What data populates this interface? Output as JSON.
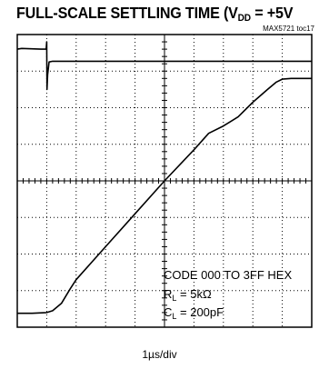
{
  "header": {
    "title_main": "FULL-SCALE SETTLING TIME  (V",
    "title_sub": "DD",
    "title_tail": " = +5V",
    "figure_id": "MAX5721 toc17"
  },
  "chart_data": {
    "type": "line",
    "title": "FULL-SCALE SETTLING TIME (VDD = +5V",
    "xlabel": "1µs/div",
    "x_divisions": 10,
    "y_divisions": 8,
    "x_unit": "div",
    "grid": true,
    "series": [
      {
        "trace": "upper",
        "x": [
          0,
          0.15,
          0.8,
          0.98,
          1.0,
          1.01,
          1.03,
          1.08,
          1.2,
          2.0,
          4.0,
          6.0,
          8.0,
          10.0
        ],
        "y": [
          7.6,
          7.62,
          7.6,
          7.6,
          7.8,
          6.5,
          6.9,
          7.25,
          7.27,
          7.27,
          7.27,
          7.27,
          7.27,
          7.27
        ]
      },
      {
        "trace": "lower",
        "x": [
          0,
          0.5,
          1.0,
          1.2,
          1.5,
          1.8,
          2.0,
          3.0,
          4.0,
          5.0,
          6.0,
          6.5,
          7.0,
          7.5,
          8.0,
          8.5,
          8.8,
          9.0,
          9.3,
          10.0
        ],
        "y": [
          0.38,
          0.38,
          0.4,
          0.45,
          0.65,
          1.05,
          1.3,
          2.2,
          3.1,
          4.0,
          4.85,
          5.3,
          5.5,
          5.75,
          6.15,
          6.5,
          6.7,
          6.78,
          6.8,
          6.8
        ]
      }
    ],
    "annotation": {
      "line1": "CODE 000 TO 3FF HEX",
      "line2_main": "R",
      "line2_sub": "L",
      "line2_tail": " = 5kΩ",
      "line3_main": "C",
      "line3_sub": "L",
      "line3_tail": " = 200pF"
    }
  }
}
